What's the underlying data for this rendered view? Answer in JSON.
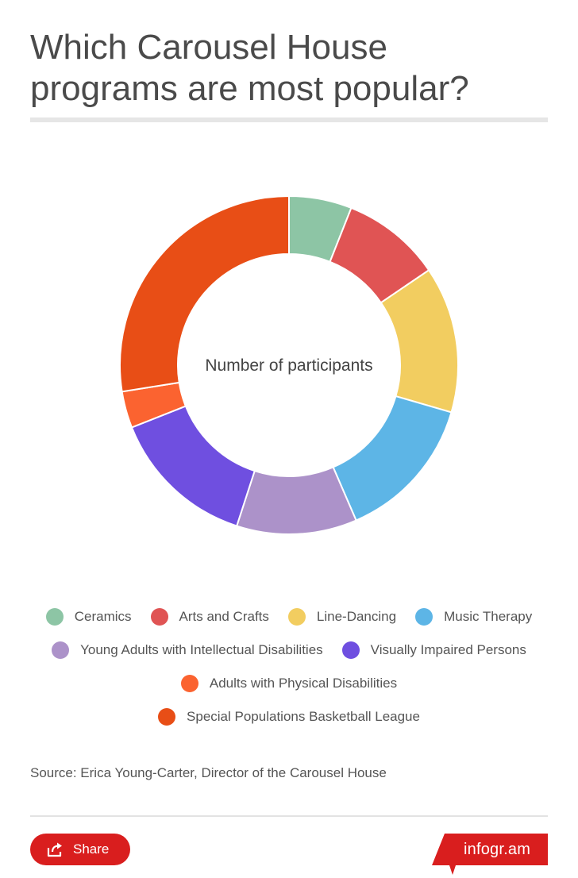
{
  "header": {
    "title_line1": "Which Carousel House",
    "title_line2": "programs are most popular?"
  },
  "chart_data": {
    "type": "pie",
    "donut": true,
    "center_label": "Number of participants",
    "categories": [
      "Ceramics",
      "Arts and Crafts",
      "Line-Dancing",
      "Music Therapy",
      "Young Adults with Intellectual Disabilities",
      "Visually Impaired Persons",
      "Adults with Physical Disabilities",
      "Special Populations Basketball League"
    ],
    "values": [
      6,
      9.5,
      14,
      14,
      11.5,
      14,
      3.5,
      27.5
    ],
    "colors": [
      "#8dc5a5",
      "#e05454",
      "#f2cd60",
      "#5db5e6",
      "#ac92c9",
      "#6f4fe0",
      "#fb6330",
      "#e84e16"
    ],
    "legend_placement": "bottom",
    "legend_rows": [
      [
        0,
        1,
        2,
        3
      ],
      [
        4,
        5
      ],
      [
        6
      ],
      [
        7
      ]
    ]
  },
  "footer": {
    "source": "Source: Erica Young-Carter, Director of the Carousel House",
    "share_label": "Share",
    "share_icon": "share-icon",
    "brand": "infogr.am",
    "brand_color": "#d91e1e"
  }
}
